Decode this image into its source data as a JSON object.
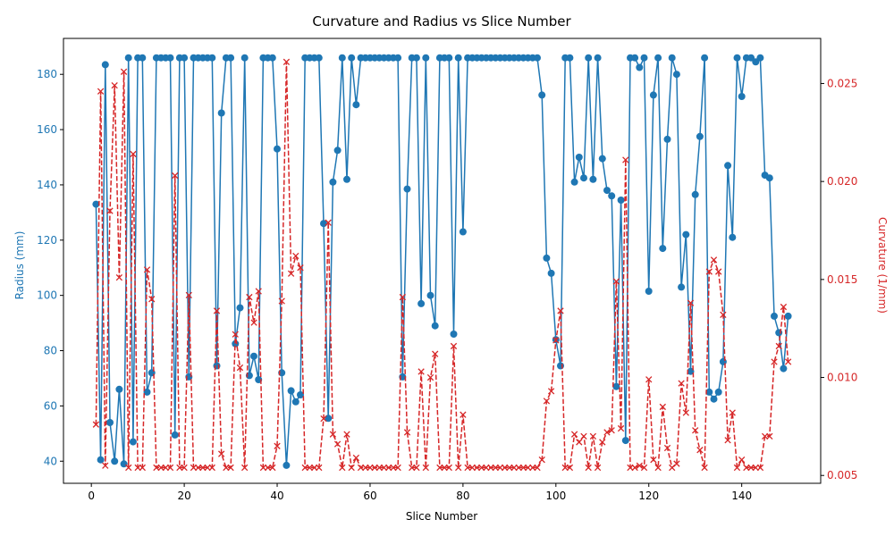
{
  "chart_data": {
    "type": "line",
    "title": "Curvature and Radius vs Slice Number",
    "xlabel": "Slice Number",
    "ylabel_left": "Radius (mm)",
    "ylabel_right": "Curvature (1/mm)",
    "xlim": [
      -6,
      157
    ],
    "ylim_left": [
      32,
      193
    ],
    "ylim_right": [
      0.0046,
      0.0273
    ],
    "x_ticks": [
      0,
      20,
      40,
      60,
      80,
      100,
      120,
      140
    ],
    "y_ticks_left": [
      40,
      60,
      80,
      100,
      120,
      140,
      160,
      180
    ],
    "y_ticks_right": [
      0.005,
      0.01,
      0.015,
      0.02,
      0.025
    ],
    "grid": false,
    "colors": {
      "radius": "#1f77b4",
      "curvature": "#d62728"
    },
    "x": [
      1,
      2,
      3,
      4,
      5,
      6,
      7,
      8,
      9,
      10,
      11,
      12,
      13,
      14,
      15,
      16,
      17,
      18,
      19,
      20,
      21,
      22,
      23,
      24,
      25,
      26,
      27,
      28,
      29,
      30,
      31,
      32,
      33,
      34,
      35,
      36,
      37,
      38,
      39,
      40,
      41,
      42,
      43,
      44,
      45,
      46,
      47,
      48,
      49,
      50,
      51,
      52,
      53,
      54,
      55,
      56,
      57,
      58,
      59,
      60,
      61,
      62,
      63,
      64,
      65,
      66,
      67,
      68,
      69,
      70,
      71,
      72,
      73,
      74,
      75,
      76,
      77,
      78,
      79,
      80,
      81,
      82,
      83,
      84,
      85,
      86,
      87,
      88,
      89,
      90,
      91,
      92,
      93,
      94,
      95,
      96,
      97,
      98,
      99,
      100,
      101,
      102,
      103,
      104,
      105,
      106,
      107,
      108,
      109,
      110,
      111,
      112,
      113,
      114,
      115,
      116,
      117,
      118,
      119,
      120,
      121,
      122,
      123,
      124,
      125,
      126,
      127,
      128,
      129,
      130,
      131,
      132,
      133,
      134,
      135,
      136,
      137,
      138,
      139,
      140,
      141,
      142,
      143,
      144,
      145,
      146,
      147,
      148,
      149,
      150
    ],
    "series": [
      {
        "name": "Radius (mm)",
        "axis": "left",
        "style": "solid-circle",
        "values": [
          133,
          40.5,
          183.5,
          54,
          40,
          66,
          39,
          186,
          47,
          186,
          186,
          65,
          72,
          186,
          186,
          186,
          186,
          49.5,
          186,
          186,
          70.5,
          186,
          186,
          186,
          186,
          186,
          74.5,
          166,
          186,
          186,
          82.5,
          95.5,
          186,
          71,
          78,
          69.5,
          186,
          186,
          186,
          153,
          72,
          38.5,
          65.5,
          61.5,
          64,
          186,
          186,
          186,
          186,
          126,
          55.5,
          141,
          152.5,
          186,
          142,
          186,
          169,
          186,
          186,
          186,
          186,
          186,
          186,
          186,
          186,
          186,
          70.5,
          138.5,
          186,
          186,
          97,
          186,
          100,
          89,
          186,
          186,
          186,
          86,
          186,
          123,
          186,
          186,
          186,
          186,
          186,
          186,
          186,
          186,
          186,
          186,
          186,
          186,
          186,
          186,
          186,
          186,
          172.5,
          113.5,
          108,
          84,
          74.5,
          186,
          186,
          141,
          150,
          142.5,
          186,
          142,
          186,
          149.5,
          138,
          136,
          67,
          134.5,
          47.5,
          186,
          186,
          182.5,
          186,
          101.5,
          172.5,
          186,
          117,
          156.5,
          186,
          180,
          103,
          122,
          72.5,
          136.5,
          157.5,
          186,
          65,
          62.5,
          65,
          76,
          147,
          121,
          186,
          172,
          186,
          186,
          184.5,
          186,
          143.5,
          142.5,
          92.5,
          86.5,
          73.5,
          92.5
        ]
      },
      {
        "name": "Curvature (1/mm)",
        "axis": "right",
        "style": "dashed-x",
        "values": [
          0.0076,
          0.0246,
          0.0055,
          0.0185,
          0.0249,
          0.0151,
          0.0256,
          0.0054,
          0.0214,
          0.0054,
          0.0054,
          0.0155,
          0.014,
          0.0054,
          0.0054,
          0.0054,
          0.0054,
          0.0203,
          0.0054,
          0.0054,
          0.0142,
          0.0054,
          0.0054,
          0.0054,
          0.0054,
          0.0054,
          0.0134,
          0.0061,
          0.0054,
          0.0054,
          0.0122,
          0.0105,
          0.0054,
          0.0141,
          0.0128,
          0.0144,
          0.0054,
          0.0054,
          0.0054,
          0.0065,
          0.0139,
          0.0261,
          0.0153,
          0.0162,
          0.0156,
          0.0054,
          0.0054,
          0.0054,
          0.0054,
          0.0079,
          0.0179,
          0.0071,
          0.0066,
          0.0054,
          0.0071,
          0.0054,
          0.0059,
          0.0054,
          0.0054,
          0.0054,
          0.0054,
          0.0054,
          0.0054,
          0.0054,
          0.0054,
          0.0054,
          0.0141,
          0.0072,
          0.0054,
          0.0054,
          0.0103,
          0.0054,
          0.01,
          0.0112,
          0.0054,
          0.0054,
          0.0054,
          0.0116,
          0.0054,
          0.0081,
          0.0054,
          0.0054,
          0.0054,
          0.0054,
          0.0054,
          0.0054,
          0.0054,
          0.0054,
          0.0054,
          0.0054,
          0.0054,
          0.0054,
          0.0054,
          0.0054,
          0.0054,
          0.0054,
          0.0058,
          0.0088,
          0.0093,
          0.0119,
          0.0134,
          0.0054,
          0.0054,
          0.0071,
          0.0067,
          0.007,
          0.0054,
          0.007,
          0.0054,
          0.0067,
          0.0072,
          0.0073,
          0.0149,
          0.0074,
          0.0211,
          0.0054,
          0.0054,
          0.0055,
          0.0054,
          0.0099,
          0.0058,
          0.0054,
          0.0085,
          0.0064,
          0.0054,
          0.0056,
          0.0097,
          0.0082,
          0.0138,
          0.0073,
          0.0063,
          0.0054,
          0.0154,
          0.016,
          0.0154,
          0.0132,
          0.0068,
          0.0082,
          0.0054,
          0.0058,
          0.0054,
          0.0054,
          0.0054,
          0.0054,
          0.007,
          0.007,
          0.0108,
          0.0116,
          0.0136,
          0.0108
        ]
      }
    ]
  }
}
